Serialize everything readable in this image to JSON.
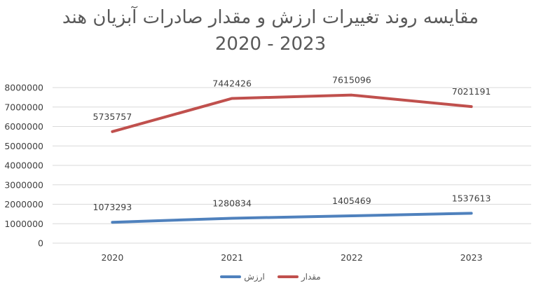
{
  "chart_data": {
    "type": "line",
    "title": "مقایسه روند تغییرات ارزش و مقدار صادرات آبزیان هند",
    "subtitle": "2020 - 2023",
    "categories": [
      "2020",
      "2021",
      "2022",
      "2023"
    ],
    "ylim": [
      0,
      8000000
    ],
    "yticks": [
      "0",
      "1000000",
      "2000000",
      "3000000",
      "4000000",
      "5000000",
      "6000000",
      "7000000",
      "8000000"
    ],
    "grid": true,
    "legend": "bottom",
    "series": [
      {
        "name": "ارزش",
        "color": "#4F81BD",
        "values": [
          1073293,
          1280834,
          1405469,
          1537613
        ]
      },
      {
        "name": "مقدار",
        "color": "#C0504D",
        "values": [
          5735757,
          7442426,
          7615096,
          7021191
        ]
      }
    ]
  }
}
